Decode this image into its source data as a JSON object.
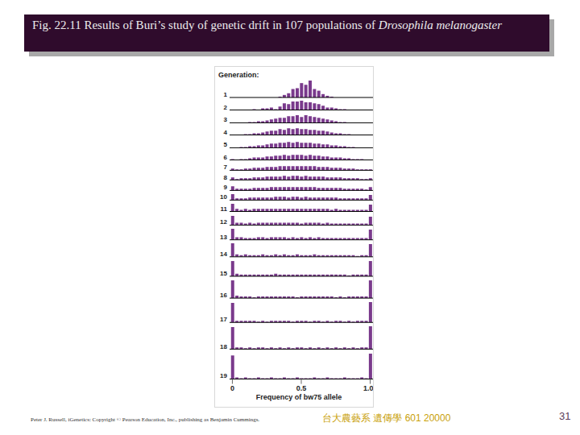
{
  "slide": {
    "title": "Fig. 22.11 Results of Buri’s study of genetic drift in 107 populations of",
    "title_species": "Drosophila melanogaster",
    "credit": "Peter J. Russell, iGenetics: Copyright © Pearson Education, Inc., publishing as Benjamin Cummings.",
    "course": "台大農藝系 遺傳學 601 20000",
    "page": 31
  },
  "chart_data": {
    "type": "bar",
    "title": "Generation:",
    "x_label": "Frequency of bw75 allele",
    "color": "#7a3a8c",
    "tick_labels": "x",
    "xlim": [
      -0.02,
      1.02
    ],
    "xticks": [
      0,
      0.5,
      {
        "value": 1,
        "label": "1.0"
      }
    ],
    "x": [
      0,
      0.03125,
      0.0625,
      0.09375,
      0.125,
      0.15625,
      0.1875,
      0.21875,
      0.25,
      0.28125,
      0.3125,
      0.34375,
      0.375,
      0.40625,
      0.4375,
      0.46875,
      0.5,
      0.53125,
      0.5625,
      0.59375,
      0.625,
      0.65625,
      0.6875,
      0.71875,
      0.75,
      0.78125,
      0.8125,
      0.84375,
      0.875,
      0.90625,
      0.9375,
      0.96875,
      1
    ],
    "series": [
      {
        "name": "1",
        "ylim": [
          0,
          20
        ],
        "values": [
          0,
          0,
          0,
          0,
          0,
          0,
          0,
          0,
          0,
          0,
          0,
          1,
          3,
          5,
          10,
          11,
          17,
          15,
          20,
          10,
          8,
          4,
          2,
          1,
          0,
          0,
          0,
          0,
          0,
          0,
          0,
          0,
          0
        ]
      },
      {
        "name": "2",
        "ylim": [
          0,
          11
        ],
        "values": [
          0,
          0,
          0,
          0,
          0,
          1,
          0,
          2,
          2,
          3,
          1,
          4,
          8,
          7,
          10,
          10,
          11,
          9,
          9,
          8,
          7,
          5,
          3,
          3,
          2,
          1,
          1,
          0,
          0,
          0,
          0,
          0,
          0
        ]
      },
      {
        "name": "3",
        "ylim": [
          0,
          11
        ],
        "values": [
          0,
          0,
          0,
          0,
          1,
          1,
          2,
          2,
          3,
          4,
          5,
          6,
          6,
          8,
          8,
          9,
          7,
          9,
          8,
          7,
          6,
          5,
          4,
          3,
          2,
          1,
          1,
          0,
          0,
          0,
          0,
          0,
          0
        ]
      },
      {
        "name": "4",
        "ylim": [
          0,
          11
        ],
        "values": [
          0,
          0,
          0,
          1,
          1,
          2,
          2,
          3,
          4,
          5,
          5,
          7,
          6,
          8,
          7,
          8,
          7,
          7,
          6,
          6,
          5,
          5,
          4,
          3,
          2,
          2,
          1,
          1,
          0,
          0,
          0,
          0,
          0
        ]
      },
      {
        "name": "5",
        "ylim": [
          0,
          11
        ],
        "values": [
          0,
          0,
          1,
          1,
          2,
          2,
          3,
          3,
          4,
          5,
          5,
          6,
          6,
          7,
          6,
          7,
          6,
          6,
          6,
          5,
          5,
          4,
          4,
          3,
          3,
          2,
          2,
          1,
          1,
          0,
          0,
          0,
          0
        ]
      },
      {
        "name": "6",
        "ylim": [
          0,
          11
        ],
        "values": [
          1,
          0,
          1,
          1,
          2,
          3,
          3,
          3,
          4,
          4,
          5,
          5,
          6,
          5,
          6,
          6,
          6,
          5,
          6,
          5,
          5,
          4,
          4,
          3,
          3,
          3,
          2,
          2,
          1,
          1,
          1,
          0,
          0
        ]
      },
      {
        "name": "7",
        "ylim": [
          0,
          8
        ],
        "values": [
          2,
          1,
          1,
          2,
          2,
          3,
          3,
          3,
          4,
          4,
          4,
          5,
          5,
          5,
          5,
          5,
          5,
          5,
          5,
          5,
          4,
          4,
          4,
          3,
          3,
          3,
          2,
          2,
          2,
          1,
          1,
          1,
          1
        ]
      },
      {
        "name": "8",
        "ylim": [
          0,
          8
        ],
        "values": [
          3,
          1,
          2,
          2,
          2,
          3,
          3,
          3,
          4,
          4,
          4,
          4,
          5,
          4,
          5,
          5,
          4,
          5,
          4,
          4,
          4,
          4,
          3,
          3,
          3,
          3,
          2,
          2,
          2,
          2,
          1,
          1,
          2
        ]
      },
      {
        "name": "9",
        "ylim": [
          0,
          8
        ],
        "values": [
          5,
          2,
          2,
          2,
          2,
          3,
          3,
          3,
          3,
          4,
          4,
          4,
          4,
          4,
          4,
          4,
          4,
          4,
          4,
          4,
          3,
          3,
          3,
          3,
          3,
          3,
          2,
          2,
          2,
          2,
          2,
          1,
          4
        ]
      },
      {
        "name": "10",
        "ylim": [
          0,
          8
        ],
        "values": [
          7,
          2,
          2,
          2,
          3,
          3,
          3,
          3,
          3,
          3,
          4,
          4,
          4,
          3,
          4,
          4,
          3,
          4,
          3,
          3,
          3,
          3,
          3,
          3,
          3,
          2,
          2,
          2,
          2,
          2,
          2,
          2,
          6
        ]
      },
      {
        "name": "11",
        "ylim": [
          0,
          10
        ],
        "values": [
          9,
          3,
          2,
          3,
          2,
          3,
          3,
          3,
          3,
          3,
          3,
          3,
          3,
          3,
          3,
          3,
          3,
          3,
          3,
          3,
          3,
          3,
          3,
          2,
          3,
          2,
          2,
          2,
          2,
          2,
          2,
          2,
          8
        ]
      },
      {
        "name": "12",
        "ylim": [
          0,
          12
        ],
        "values": [
          11,
          3,
          3,
          2,
          3,
          2,
          3,
          3,
          3,
          3,
          3,
          3,
          3,
          3,
          3,
          3,
          2,
          3,
          3,
          3,
          3,
          2,
          3,
          2,
          2,
          2,
          2,
          2,
          2,
          2,
          2,
          2,
          10
        ]
      },
      {
        "name": "13",
        "ylim": [
          0,
          14
        ],
        "values": [
          13,
          3,
          3,
          2,
          2,
          2,
          3,
          3,
          2,
          3,
          3,
          3,
          3,
          2,
          3,
          2,
          3,
          2,
          3,
          2,
          3,
          2,
          2,
          2,
          2,
          2,
          2,
          2,
          2,
          2,
          2,
          2,
          12
        ]
      },
      {
        "name": "14",
        "ylim": [
          0,
          16
        ],
        "values": [
          16,
          3,
          2,
          3,
          2,
          2,
          2,
          3,
          2,
          2,
          3,
          2,
          3,
          2,
          2,
          3,
          2,
          2,
          2,
          3,
          2,
          2,
          2,
          2,
          2,
          2,
          2,
          2,
          2,
          1,
          2,
          2,
          15
        ]
      },
      {
        "name": "15",
        "ylim": [
          0,
          19
        ],
        "values": [
          18,
          3,
          2,
          2,
          2,
          2,
          2,
          2,
          2,
          2,
          3,
          2,
          2,
          2,
          2,
          2,
          2,
          2,
          2,
          2,
          2,
          2,
          2,
          2,
          2,
          2,
          2,
          1,
          2,
          2,
          2,
          2,
          18
        ]
      },
      {
        "name": "16",
        "ylim": [
          0,
          22
        ],
        "values": [
          21,
          3,
          2,
          2,
          2,
          1,
          2,
          2,
          2,
          2,
          2,
          2,
          2,
          2,
          2,
          1,
          2,
          2,
          2,
          2,
          2,
          2,
          2,
          2,
          1,
          2,
          1,
          2,
          2,
          2,
          2,
          2,
          21
        ]
      },
      {
        "name": "17",
        "ylim": [
          0,
          25
        ],
        "values": [
          23,
          2,
          2,
          2,
          2,
          2,
          1,
          2,
          1,
          2,
          2,
          2,
          2,
          2,
          1,
          2,
          2,
          2,
          1,
          2,
          2,
          1,
          2,
          1,
          2,
          2,
          1,
          2,
          1,
          2,
          2,
          2,
          24
        ]
      },
      {
        "name": "18",
        "ylim": [
          0,
          28
        ],
        "values": [
          26,
          2,
          2,
          1,
          2,
          1,
          2,
          2,
          1,
          2,
          1,
          2,
          1,
          2,
          1,
          2,
          2,
          1,
          2,
          1,
          2,
          1,
          2,
          1,
          2,
          1,
          2,
          1,
          2,
          1,
          2,
          2,
          27
        ]
      },
      {
        "name": "19",
        "ylim": [
          0,
          31
        ],
        "values": [
          28,
          2,
          1,
          2,
          1,
          1,
          2,
          1,
          1,
          2,
          1,
          1,
          2,
          1,
          1,
          2,
          1,
          1,
          1,
          2,
          1,
          1,
          2,
          1,
          1,
          1,
          2,
          1,
          1,
          1,
          2,
          1,
          30
        ]
      }
    ]
  }
}
